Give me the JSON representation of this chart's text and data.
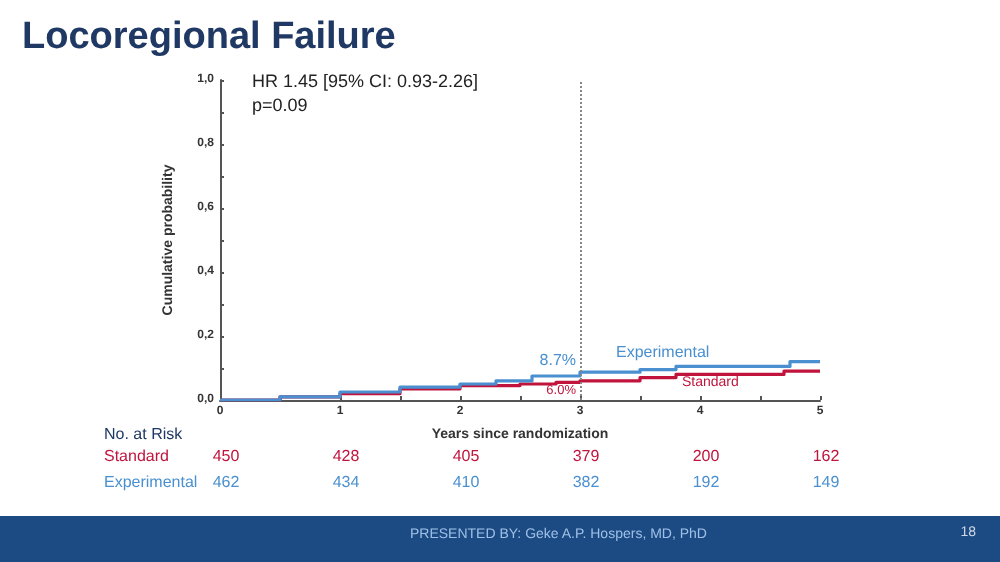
{
  "chart_data": {
    "type": "step",
    "title": "Locoregional Failure",
    "xlabel": "Years since randomization",
    "ylabel": "Cumulative probability",
    "xlim": [
      0,
      5
    ],
    "ylim": [
      0,
      1
    ],
    "xticks": [
      0,
      {
        "value": 0.5,
        "label": null
      },
      1,
      {
        "value": 1.5,
        "label": null
      },
      2,
      {
        "value": 2.5,
        "label": null
      },
      3,
      {
        "value": 3.5,
        "label": null
      },
      4,
      {
        "value": 4.5,
        "label": null
      },
      5
    ],
    "yticks": [
      {
        "value": 0,
        "label": "0,0"
      },
      {
        "value": 0.1,
        "label": null
      },
      {
        "value": 0.2,
        "label": "0,2"
      },
      {
        "value": 0.3,
        "label": null
      },
      {
        "value": 0.4,
        "label": "0,4"
      },
      {
        "value": 0.5,
        "label": null
      },
      {
        "value": 0.6,
        "label": "0,6"
      },
      {
        "value": 0.7,
        "label": null
      },
      {
        "value": 0.8,
        "label": "0,8"
      },
      {
        "value": 0.9,
        "label": null
      },
      {
        "value": 1,
        "label": "1,0"
      }
    ],
    "grid": false,
    "legend": false,
    "marker": "none",
    "line_style": "solid",
    "series": [
      {
        "name": "Standard",
        "color": "#c0143c",
        "x": [
          0,
          0.5,
          1,
          1.5,
          2,
          2.5,
          2.8,
          3,
          3.5,
          3.8,
          4.7,
          5
        ],
        "values": [
          0,
          0.01,
          0.02,
          0.035,
          0.045,
          0.05,
          0.055,
          0.06,
          0.07,
          0.08,
          0.09,
          0.09
        ]
      },
      {
        "name": "Experimental",
        "color": "#4a90d0",
        "x": [
          0,
          0.5,
          1,
          1.5,
          2,
          2.3,
          2.6,
          3,
          3.5,
          3.8,
          4.75,
          5
        ],
        "values": [
          0,
          0.01,
          0.025,
          0.04,
          0.05,
          0.06,
          0.075,
          0.087,
          0.095,
          0.105,
          0.12,
          0.12
        ]
      }
    ],
    "ref_lines": [
      {
        "axis": "x",
        "value": 3,
        "color": "#888888",
        "line_style": "dotted"
      }
    ],
    "annotations": [
      "HR 1.45 [95% CI: 0.93-2.26]",
      "p=0.09",
      {
        "text": "8.7%",
        "x": 3,
        "y": 0.087
      },
      {
        "text": "6.0%",
        "x": 3,
        "y": 0.06
      },
      "No. at Risk",
      "Standard",
      "450",
      "428",
      "405",
      "379",
      "200",
      "162",
      "Experimental",
      "462",
      "434",
      "410",
      "382",
      "192",
      "149",
      "PRESENTED BY: Geke A.P. Hospers, MD, PhD",
      "18"
    ]
  }
}
